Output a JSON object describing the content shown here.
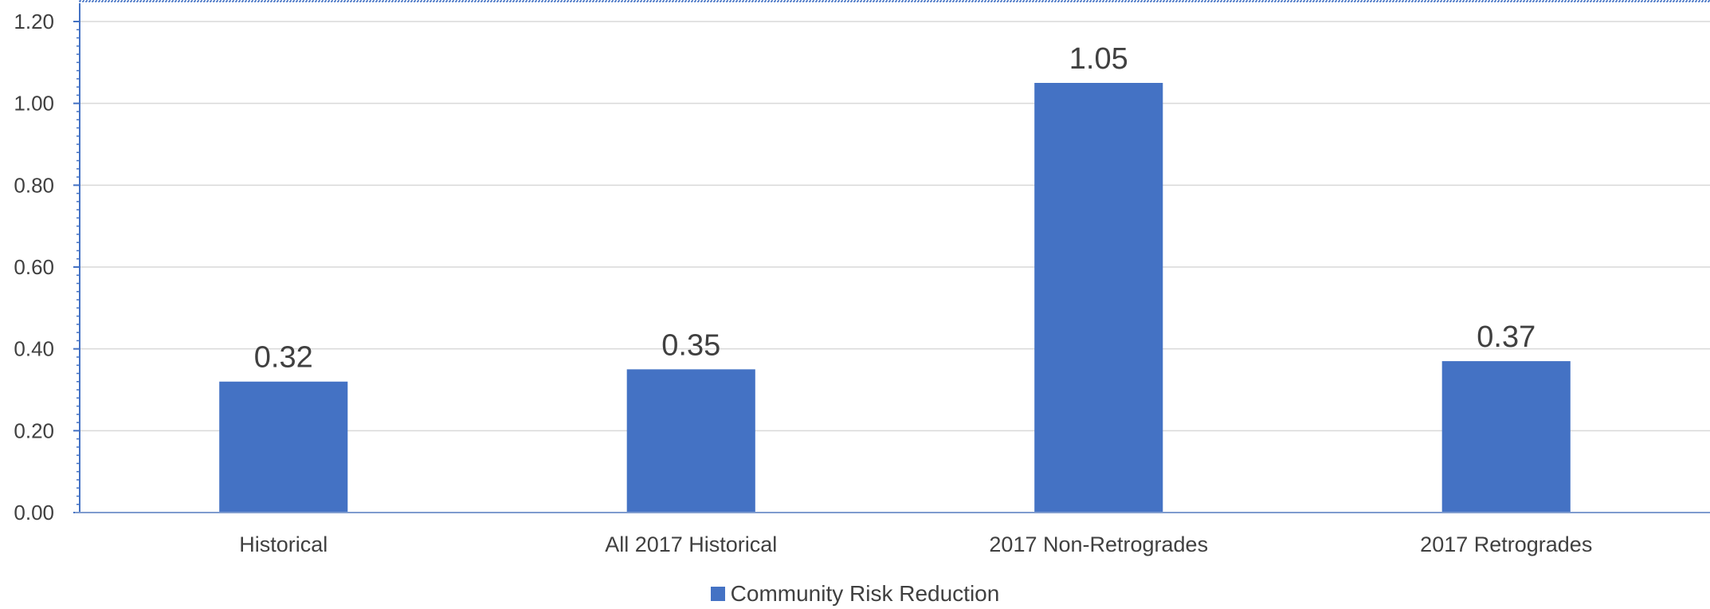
{
  "chart_data": {
    "type": "bar",
    "categories": [
      "Historical",
      "All 2017 Historical",
      "2017 Non-Retrogrades",
      "2017 Retrogrades"
    ],
    "series": [
      {
        "name": "Community Risk Reduction",
        "values": [
          0.32,
          0.35,
          1.05,
          0.37
        ],
        "labels": [
          "0.32",
          "0.35",
          "1.05",
          "0.37"
        ],
        "color": "#4472C4"
      }
    ],
    "yticks": [
      "0.00",
      "0.20",
      "0.40",
      "0.60",
      "0.80",
      "1.00",
      "1.20"
    ],
    "ylim": [
      0,
      1.2
    ],
    "grid": true,
    "legend_position": "bottom",
    "title": "",
    "xlabel": "",
    "ylabel": ""
  }
}
